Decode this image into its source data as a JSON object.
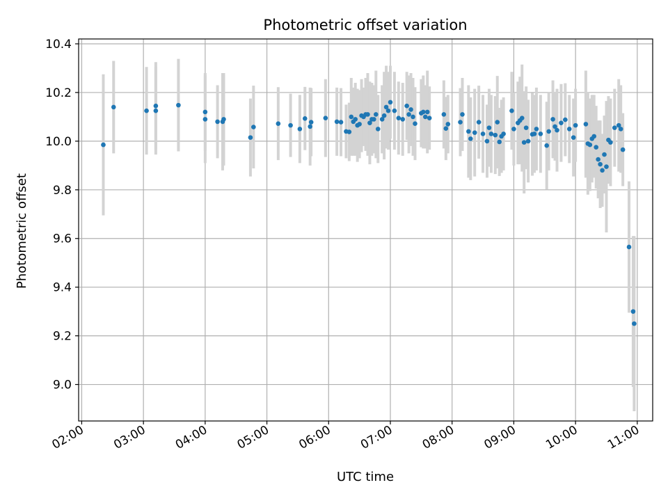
{
  "chart_data": {
    "type": "scatter",
    "title": "Photometric offset variation",
    "xlabel": "UTC time",
    "ylabel": "Photometric offset",
    "x_is_time": true,
    "xlim": [
      "01:57",
      "11:15"
    ],
    "ylim": [
      8.85,
      10.42
    ],
    "x_ticks": [
      "02:00",
      "03:00",
      "04:00",
      "05:00",
      "06:00",
      "07:00",
      "08:00",
      "09:00",
      "10:00",
      "11:00"
    ],
    "y_ticks": [
      "9.0",
      "9.2",
      "9.4",
      "9.6",
      "9.8",
      "10.0",
      "10.2",
      "10.4"
    ],
    "grid": true,
    "point_color": "#1f77b4",
    "errorbar_color": "#d3d3d3",
    "points": [
      {
        "t": "02:21",
        "y": 9.985,
        "e": 0.29
      },
      {
        "t": "02:31",
        "y": 10.14,
        "e": 0.19
      },
      {
        "t": "03:03",
        "y": 10.125,
        "e": 0.18
      },
      {
        "t": "03:12",
        "y": 10.125,
        "e": 0.18
      },
      {
        "t": "03:12",
        "y": 10.145,
        "e": 0.18
      },
      {
        "t": "03:34",
        "y": 10.148,
        "e": 0.19
      },
      {
        "t": "04:00",
        "y": 10.09,
        "e": 0.18
      },
      {
        "t": "04:00",
        "y": 10.12,
        "e": 0.16
      },
      {
        "t": "04:12",
        "y": 10.08,
        "e": 0.15
      },
      {
        "t": "04:17",
        "y": 10.08,
        "e": 0.2
      },
      {
        "t": "04:18",
        "y": 10.09,
        "e": 0.19
      },
      {
        "t": "04:44",
        "y": 10.015,
        "e": 0.16
      },
      {
        "t": "04:47",
        "y": 10.058,
        "e": 0.17
      },
      {
        "t": "05:11",
        "y": 10.072,
        "e": 0.15
      },
      {
        "t": "05:23",
        "y": 10.065,
        "e": 0.13
      },
      {
        "t": "05:32",
        "y": 10.05,
        "e": 0.14
      },
      {
        "t": "05:37",
        "y": 10.093,
        "e": 0.13
      },
      {
        "t": "05:42",
        "y": 10.06,
        "e": 0.16
      },
      {
        "t": "05:43",
        "y": 10.078,
        "e": 0.14
      },
      {
        "t": "05:57",
        "y": 10.095,
        "e": 0.16
      },
      {
        "t": "06:08",
        "y": 10.08,
        "e": 0.14
      },
      {
        "t": "06:12",
        "y": 10.078,
        "e": 0.14
      },
      {
        "t": "06:17",
        "y": 10.04,
        "e": 0.11
      },
      {
        "t": "06:20",
        "y": 10.038,
        "e": 0.12
      },
      {
        "t": "06:22",
        "y": 10.1,
        "e": 0.16
      },
      {
        "t": "06:24",
        "y": 10.08,
        "e": 0.14
      },
      {
        "t": "06:26",
        "y": 10.09,
        "e": 0.15
      },
      {
        "t": "06:28",
        "y": 10.065,
        "e": 0.15
      },
      {
        "t": "06:30",
        "y": 10.07,
        "e": 0.14
      },
      {
        "t": "06:32",
        "y": 10.105,
        "e": 0.15
      },
      {
        "t": "06:34",
        "y": 10.1,
        "e": 0.12
      },
      {
        "t": "06:36",
        "y": 10.11,
        "e": 0.15
      },
      {
        "t": "06:38",
        "y": 10.11,
        "e": 0.17
      },
      {
        "t": "06:40",
        "y": 10.075,
        "e": 0.17
      },
      {
        "t": "06:42",
        "y": 10.09,
        "e": 0.15
      },
      {
        "t": "06:44",
        "y": 10.09,
        "e": 0.14
      },
      {
        "t": "06:46",
        "y": 10.11,
        "e": 0.18
      },
      {
        "t": "06:48",
        "y": 10.05,
        "e": 0.14
      },
      {
        "t": "06:52",
        "y": 10.09,
        "e": 0.14
      },
      {
        "t": "06:54",
        "y": 10.105,
        "e": 0.18
      },
      {
        "t": "06:56",
        "y": 10.14,
        "e": 0.17
      },
      {
        "t": "06:58",
        "y": 10.125,
        "e": 0.16
      },
      {
        "t": "07:00",
        "y": 10.16,
        "e": 0.15
      },
      {
        "t": "07:04",
        "y": 10.125,
        "e": 0.16
      },
      {
        "t": "07:08",
        "y": 10.095,
        "e": 0.15
      },
      {
        "t": "07:12",
        "y": 10.09,
        "e": 0.15
      },
      {
        "t": "07:16",
        "y": 10.145,
        "e": 0.14
      },
      {
        "t": "07:18",
        "y": 10.11,
        "e": 0.16
      },
      {
        "t": "07:20",
        "y": 10.13,
        "e": 0.15
      },
      {
        "t": "07:22",
        "y": 10.1,
        "e": 0.16
      },
      {
        "t": "07:24",
        "y": 10.072,
        "e": 0.15
      },
      {
        "t": "07:30",
        "y": 10.115,
        "e": 0.14
      },
      {
        "t": "07:32",
        "y": 10.12,
        "e": 0.15
      },
      {
        "t": "07:34",
        "y": 10.1,
        "e": 0.13
      },
      {
        "t": "07:36",
        "y": 10.12,
        "e": 0.17
      },
      {
        "t": "07:38",
        "y": 10.095,
        "e": 0.13
      },
      {
        "t": "07:52",
        "y": 10.11,
        "e": 0.14
      },
      {
        "t": "07:54",
        "y": 10.052,
        "e": 0.13
      },
      {
        "t": "07:56",
        "y": 10.07,
        "e": 0.12
      },
      {
        "t": "08:08",
        "y": 10.078,
        "e": 0.14
      },
      {
        "t": "08:10",
        "y": 10.11,
        "e": 0.15
      },
      {
        "t": "08:16",
        "y": 10.04,
        "e": 0.19
      },
      {
        "t": "08:18",
        "y": 10.01,
        "e": 0.17
      },
      {
        "t": "08:22",
        "y": 10.035,
        "e": 0.18
      },
      {
        "t": "08:26",
        "y": 10.078,
        "e": 0.15
      },
      {
        "t": "08:30",
        "y": 10.03,
        "e": 0.16
      },
      {
        "t": "08:34",
        "y": 10.0,
        "e": 0.15
      },
      {
        "t": "08:36",
        "y": 10.055,
        "e": 0.16
      },
      {
        "t": "08:38",
        "y": 10.03,
        "e": 0.16
      },
      {
        "t": "08:42",
        "y": 10.025,
        "e": 0.16
      },
      {
        "t": "08:44",
        "y": 10.078,
        "e": 0.19
      },
      {
        "t": "08:46",
        "y": 9.997,
        "e": 0.14
      },
      {
        "t": "08:48",
        "y": 10.02,
        "e": 0.15
      },
      {
        "t": "08:50",
        "y": 10.03,
        "e": 0.15
      },
      {
        "t": "08:58",
        "y": 10.125,
        "e": 0.16
      },
      {
        "t": "09:00",
        "y": 10.05,
        "e": 0.15
      },
      {
        "t": "09:04",
        "y": 10.075,
        "e": 0.17
      },
      {
        "t": "09:06",
        "y": 10.085,
        "e": 0.18
      },
      {
        "t": "09:08",
        "y": 10.095,
        "e": 0.22
      },
      {
        "t": "09:10",
        "y": 9.995,
        "e": 0.21
      },
      {
        "t": "09:12",
        "y": 10.055,
        "e": 0.17
      },
      {
        "t": "09:14",
        "y": 10.0,
        "e": 0.17
      },
      {
        "t": "09:18",
        "y": 10.028,
        "e": 0.17
      },
      {
        "t": "09:20",
        "y": 10.03,
        "e": 0.16
      },
      {
        "t": "09:22",
        "y": 10.05,
        "e": 0.17
      },
      {
        "t": "09:26",
        "y": 10.03,
        "e": 0.16
      },
      {
        "t": "09:32",
        "y": 9.982,
        "e": 0.18
      },
      {
        "t": "09:34",
        "y": 10.04,
        "e": 0.16
      },
      {
        "t": "09:38",
        "y": 10.09,
        "e": 0.16
      },
      {
        "t": "09:40",
        "y": 10.06,
        "e": 0.14
      },
      {
        "t": "09:42",
        "y": 10.045,
        "e": 0.17
      },
      {
        "t": "09:46",
        "y": 10.075,
        "e": 0.16
      },
      {
        "t": "09:50",
        "y": 10.088,
        "e": 0.15
      },
      {
        "t": "09:54",
        "y": 10.05,
        "e": 0.14
      },
      {
        "t": "09:58",
        "y": 10.015,
        "e": 0.16
      },
      {
        "t": "10:00",
        "y": 10.065,
        "e": 0.15
      },
      {
        "t": "10:10",
        "y": 10.07,
        "e": 0.22
      },
      {
        "t": "10:12",
        "y": 9.99,
        "e": 0.21
      },
      {
        "t": "10:14",
        "y": 9.985,
        "e": 0.19
      },
      {
        "t": "10:16",
        "y": 10.01,
        "e": 0.18
      },
      {
        "t": "10:18",
        "y": 10.02,
        "e": 0.17
      },
      {
        "t": "10:20",
        "y": 9.975,
        "e": 0.17
      },
      {
        "t": "10:22",
        "y": 9.925,
        "e": 0.16
      },
      {
        "t": "10:24",
        "y": 9.905,
        "e": 0.18
      },
      {
        "t": "10:26",
        "y": 9.88,
        "e": 0.15
      },
      {
        "t": "10:28",
        "y": 9.945,
        "e": 0.16
      },
      {
        "t": "10:30",
        "y": 9.895,
        "e": 0.27
      },
      {
        "t": "10:32",
        "y": 10.005,
        "e": 0.18
      },
      {
        "t": "10:34",
        "y": 9.995,
        "e": 0.18
      },
      {
        "t": "10:38",
        "y": 10.055,
        "e": 0.16
      },
      {
        "t": "10:42",
        "y": 10.065,
        "e": 0.19
      },
      {
        "t": "10:44",
        "y": 10.05,
        "e": 0.18
      },
      {
        "t": "10:46",
        "y": 9.965,
        "e": 0.15
      },
      {
        "t": "10:52",
        "y": 9.565,
        "e": 0.27
      },
      {
        "t": "10:56",
        "y": 9.3,
        "e": 0.31
      },
      {
        "t": "10:57",
        "y": 9.25,
        "e": 0.36
      }
    ]
  }
}
